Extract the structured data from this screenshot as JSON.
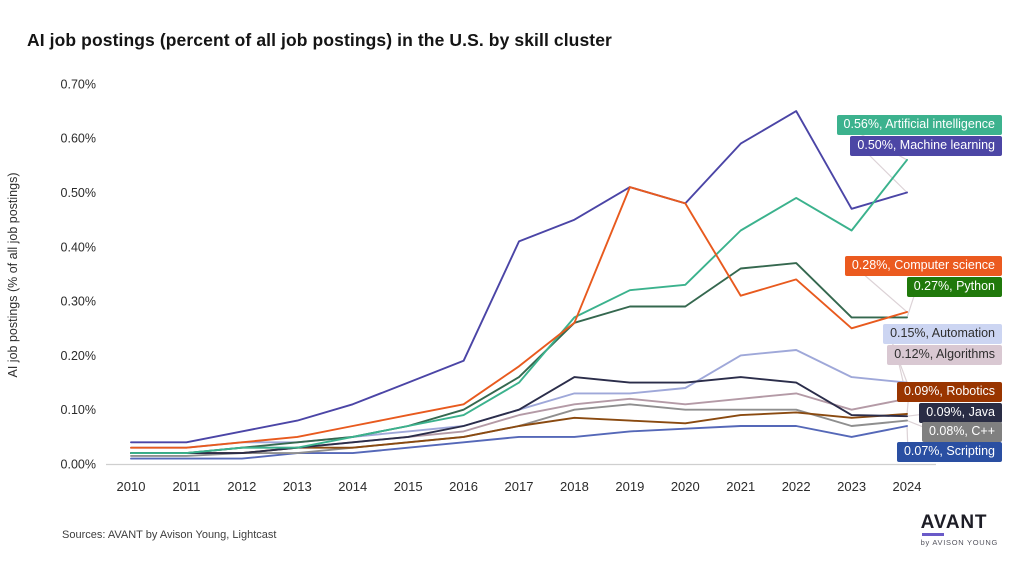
{
  "footer": {
    "sources": "Sources: AVANT by Avison Young, Lightcast",
    "logo_main": "AVANT",
    "logo_sub": "by AVISON YOUNG",
    "logo_accent_color": "#6a5ac8"
  },
  "chart_data": {
    "type": "line",
    "title": "AI job postings (percent of all job postings) in the U.S. by skill cluster",
    "ylabel": "AI job postings (% of all job postings)",
    "x": [
      2010,
      2011,
      2012,
      2013,
      2014,
      2015,
      2016,
      2017,
      2018,
      2019,
      2020,
      2021,
      2022,
      2023,
      2024
    ],
    "xticks": [
      "2010",
      "2011",
      "2012",
      "2013",
      "2014",
      "2015",
      "2016",
      "2017",
      "2018",
      "2019",
      "2020",
      "2021",
      "2022",
      "2023",
      "2024"
    ],
    "yticks": [
      "0.00%",
      "0.10%",
      "0.20%",
      "0.30%",
      "0.40%",
      "0.50%",
      "0.60%",
      "0.70%"
    ],
    "ylim": [
      0,
      0.7
    ],
    "grid": false,
    "legend_position": "right-edge-labels",
    "axis_color": "#cfcfcf",
    "leader_line_color": "#dcd2d6",
    "series": [
      {
        "name": "Artificial intelligence",
        "end_label": "0.56%, Artificial intelligence",
        "end_value": "0.56%",
        "line_color": "#3bb28d",
        "label_bg": "#3cb28e",
        "label_fg": "#ffffff",
        "values": [
          0.02,
          0.02,
          0.03,
          0.03,
          0.05,
          0.07,
          0.09,
          0.15,
          0.27,
          0.32,
          0.33,
          0.43,
          0.49,
          0.43,
          0.56
        ]
      },
      {
        "name": "Machine learning",
        "end_label": "0.50%, Machine learning",
        "end_value": "0.50%",
        "line_color": "#4b45a6",
        "label_bg": "#4c46a5",
        "label_fg": "#ffffff",
        "values": [
          0.04,
          0.04,
          0.06,
          0.08,
          0.11,
          0.15,
          0.19,
          0.41,
          0.45,
          0.51,
          0.48,
          0.59,
          0.65,
          0.47,
          0.5
        ]
      },
      {
        "name": "Computer science",
        "end_label": "0.28%, Computer science",
        "end_value": "0.28%",
        "line_color": "#e85a1e",
        "label_bg": "#eb5a1f",
        "label_fg": "#ffffff",
        "values": [
          0.03,
          0.03,
          0.04,
          0.05,
          0.07,
          0.09,
          0.11,
          0.18,
          0.26,
          0.51,
          0.48,
          0.31,
          0.34,
          0.25,
          0.28
        ]
      },
      {
        "name": "Python",
        "end_label": "0.27%, Python",
        "end_value": "0.27%",
        "line_color": "#35684f",
        "label_bg": "#20790b",
        "label_fg": "#ffffff",
        "values": [
          0.02,
          0.02,
          0.03,
          0.04,
          0.05,
          0.07,
          0.1,
          0.16,
          0.26,
          0.29,
          0.29,
          0.36,
          0.37,
          0.27,
          0.27
        ]
      },
      {
        "name": "Automation",
        "end_label": "0.15%, Automation",
        "end_value": "0.15%",
        "line_color": "#9fa8d9",
        "label_bg": "#ccd5f2",
        "label_fg": "#2e2e2e",
        "values": [
          0.03,
          0.03,
          0.04,
          0.04,
          0.05,
          0.06,
          0.07,
          0.1,
          0.13,
          0.13,
          0.14,
          0.2,
          0.21,
          0.16,
          0.15
        ]
      },
      {
        "name": "Algorithms",
        "end_label": "0.12%, Algorithms",
        "end_value": "0.12%",
        "line_color": "#b49aa6",
        "label_bg": "#d9c8d2",
        "label_fg": "#2e2e2e",
        "values": [
          0.02,
          0.02,
          0.03,
          0.03,
          0.04,
          0.05,
          0.06,
          0.09,
          0.11,
          0.12,
          0.11,
          0.12,
          0.13,
          0.1,
          0.12
        ]
      },
      {
        "name": "Robotics",
        "end_label": "0.09%, Robotics",
        "end_value": "0.09%",
        "line_color": "#8a4a10",
        "label_bg": "#993500",
        "label_fg": "#ffffff",
        "values": [
          0.02,
          0.02,
          0.02,
          0.03,
          0.03,
          0.04,
          0.05,
          0.07,
          0.085,
          0.08,
          0.075,
          0.09,
          0.095,
          0.085,
          0.092
        ]
      },
      {
        "name": "Java",
        "end_label": "0.09%, Java",
        "end_value": "0.09%",
        "line_color": "#2b2d4a",
        "label_bg": "#2a2d45",
        "label_fg": "#ffffff",
        "values": [
          0.02,
          0.02,
          0.02,
          0.03,
          0.04,
          0.05,
          0.07,
          0.1,
          0.16,
          0.15,
          0.15,
          0.16,
          0.15,
          0.09,
          0.088
        ]
      },
      {
        "name": "C++",
        "end_label": "0.08%, C++",
        "end_value": "0.08%",
        "line_color": "#8f8f8f",
        "label_bg": "#808080",
        "label_fg": "#ffffff",
        "values": [
          0.015,
          0.015,
          0.02,
          0.02,
          0.03,
          0.04,
          0.05,
          0.07,
          0.1,
          0.11,
          0.1,
          0.1,
          0.1,
          0.07,
          0.08
        ]
      },
      {
        "name": "Scripting",
        "end_label": "0.07%, Scripting",
        "end_value": "0.07%",
        "line_color": "#5568b8",
        "label_bg": "#2a4fa2",
        "label_fg": "#ffffff",
        "values": [
          0.01,
          0.01,
          0.01,
          0.02,
          0.02,
          0.03,
          0.04,
          0.05,
          0.05,
          0.06,
          0.065,
          0.07,
          0.07,
          0.05,
          0.07
        ]
      }
    ]
  }
}
